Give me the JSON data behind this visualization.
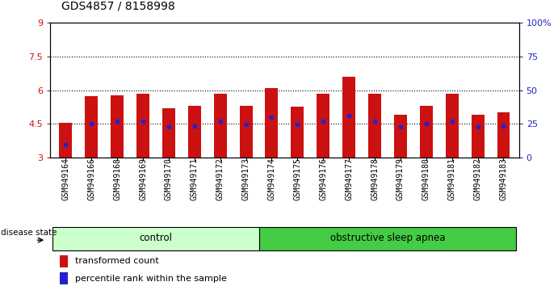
{
  "title": "GDS4857 / 8158998",
  "samples": [
    "GSM949164",
    "GSM949166",
    "GSM949168",
    "GSM949169",
    "GSM949170",
    "GSM949171",
    "GSM949172",
    "GSM949173",
    "GSM949174",
    "GSM949175",
    "GSM949176",
    "GSM949177",
    "GSM949178",
    "GSM949179",
    "GSM949180",
    "GSM949181",
    "GSM949182",
    "GSM949183"
  ],
  "bar_heights": [
    4.55,
    5.72,
    5.78,
    5.83,
    5.2,
    5.3,
    5.85,
    5.3,
    6.08,
    5.25,
    5.85,
    6.6,
    5.85,
    4.9,
    5.3,
    5.85,
    4.9,
    5.0
  ],
  "percentile_values": [
    3.55,
    4.5,
    4.6,
    4.6,
    4.35,
    4.4,
    4.6,
    4.45,
    4.8,
    4.45,
    4.6,
    4.85,
    4.6,
    4.35,
    4.5,
    4.6,
    4.35,
    4.4
  ],
  "bar_color": "#cc1111",
  "percentile_color": "#2222cc",
  "ymin": 3,
  "ymax": 9,
  "yticks_left": [
    3,
    4.5,
    6,
    7.5,
    9
  ],
  "yticks_left_labels": [
    "3",
    "4.5",
    "6",
    "7.5",
    "9"
  ],
  "yticks_right": [
    0,
    25,
    50,
    75,
    100
  ],
  "yticks_right_labels": [
    "0",
    "25",
    "50",
    "75",
    "100%"
  ],
  "group_colors": [
    "#ccffcc",
    "#44cc44"
  ],
  "disease_state_label": "disease state",
  "legend_items": [
    "transformed count",
    "percentile rank within the sample"
  ],
  "legend_colors": [
    "#cc1111",
    "#2222cc"
  ],
  "n_control": 8,
  "n_osa": 10,
  "bg_color": "#ffffff",
  "grid_color": "black",
  "title_fontsize": 10,
  "tick_fontsize": 7,
  "bar_width": 0.5
}
